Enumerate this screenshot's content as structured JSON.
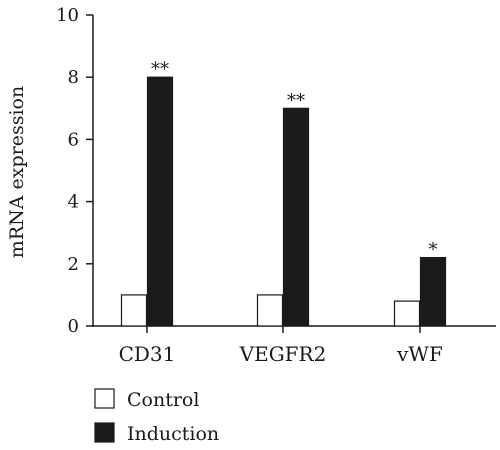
{
  "chart_data": {
    "type": "bar",
    "title": "",
    "xlabel": "",
    "ylabel": "mRNA expression",
    "ylim": [
      0,
      10
    ],
    "yticks": [
      0,
      2,
      4,
      6,
      8,
      10
    ],
    "categories": [
      "CD31",
      "VEGFR2",
      "vWF"
    ],
    "series": [
      {
        "name": "Control",
        "values": [
          1.0,
          1.0,
          0.8
        ],
        "color": "#ffffff",
        "stroke": "#1a1a1a"
      },
      {
        "name": "Induction",
        "values": [
          8.0,
          7.0,
          2.2
        ],
        "color": "#1a1a1a",
        "stroke": "#1a1a1a"
      }
    ],
    "annotations": [
      "**",
      "**",
      "*"
    ],
    "grid": false,
    "legend_position": "bottom-left"
  }
}
